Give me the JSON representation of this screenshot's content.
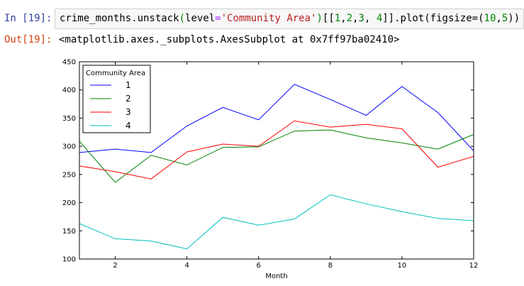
{
  "input_cell": {
    "prompt": "In [19]:",
    "code_parts": [
      {
        "text": "crime_months.unstack",
        "cls": ""
      },
      {
        "text": "(",
        "cls": "tok-num"
      },
      {
        "text": "level",
        "cls": ""
      },
      {
        "text": "=",
        "cls": "tok-eq"
      },
      {
        "text": "'Community Area'",
        "cls": "tok-str"
      },
      {
        "text": ")",
        "cls": "tok-num"
      },
      {
        "text": "[[",
        "cls": ""
      },
      {
        "text": "1",
        "cls": "tok-num"
      },
      {
        "text": ",",
        "cls": ""
      },
      {
        "text": "2",
        "cls": "tok-num"
      },
      {
        "text": ",",
        "cls": ""
      },
      {
        "text": "3",
        "cls": "tok-num"
      },
      {
        "text": ", ",
        "cls": ""
      },
      {
        "text": "4",
        "cls": "tok-num"
      },
      {
        "text": "]].plot(figsize=(",
        "cls": ""
      },
      {
        "text": "10",
        "cls": "tok-num"
      },
      {
        "text": ",",
        "cls": ""
      },
      {
        "text": "5",
        "cls": "tok-num"
      },
      {
        "text": "))",
        "cls": ""
      }
    ]
  },
  "output_cell": {
    "prompt": "Out[19]:",
    "text": "<matplotlib.axes._subplots.AxesSubplot at 0x7ff97ba02410>"
  },
  "chart_data": {
    "type": "line",
    "xlabel": "Month",
    "ylabel": "",
    "xlim": [
      1,
      12
    ],
    "ylim": [
      100,
      450
    ],
    "xticks": [
      2,
      4,
      6,
      8,
      10,
      12
    ],
    "yticks": [
      100,
      150,
      200,
      250,
      300,
      350,
      400,
      450
    ],
    "legend_title": "Community Area",
    "legend_position": "upper-left",
    "x": [
      1,
      2,
      3,
      4,
      5,
      6,
      7,
      8,
      9,
      10,
      11,
      12
    ],
    "series": [
      {
        "name": "1",
        "color": "#0000ff",
        "values": [
          289,
          295,
          289,
          336,
          369,
          347,
          410,
          383,
          355,
          406,
          360,
          292
        ]
      },
      {
        "name": "2",
        "color": "#008000",
        "values": [
          309,
          236,
          284,
          267,
          298,
          299,
          327,
          329,
          315,
          306,
          295,
          321
        ]
      },
      {
        "name": "3",
        "color": "#ff0000",
        "values": [
          265,
          255,
          242,
          290,
          304,
          300,
          345,
          334,
          339,
          331,
          263,
          282
        ]
      },
      {
        "name": "4",
        "color": "#00bfbf",
        "values": [
          163,
          136,
          132,
          118,
          174,
          160,
          171,
          214,
          198,
          184,
          172,
          168
        ]
      }
    ]
  }
}
